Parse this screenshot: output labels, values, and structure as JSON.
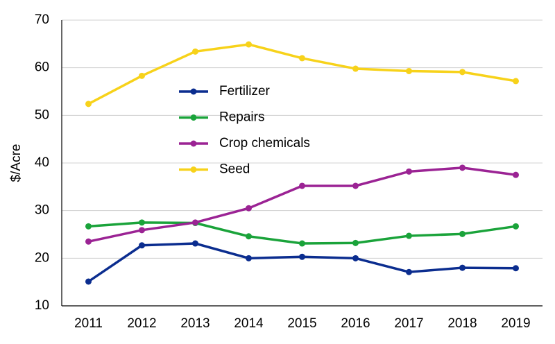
{
  "chart_data": {
    "type": "line",
    "categories": [
      "2011",
      "2012",
      "2013",
      "2014",
      "2015",
      "2016",
      "2017",
      "2018",
      "2019"
    ],
    "series": [
      {
        "name": "Fertilizer",
        "color": "#0b2d8f",
        "values": [
          15.1,
          22.7,
          23.1,
          20.0,
          20.3,
          20.0,
          17.1,
          18.0,
          17.9
        ]
      },
      {
        "name": "Repairs",
        "color": "#1aa33a",
        "values": [
          26.7,
          27.5,
          27.4,
          24.6,
          23.1,
          23.2,
          24.7,
          25.1,
          26.7
        ]
      },
      {
        "name": "Crop chemicals",
        "color": "#9b2394",
        "values": [
          23.5,
          25.9,
          27.5,
          30.5,
          35.2,
          35.2,
          38.2,
          39.0,
          37.5
        ]
      },
      {
        "name": "Seed",
        "color": "#f7d21a",
        "values": [
          52.4,
          58.3,
          63.4,
          64.9,
          62.0,
          59.8,
          59.3,
          59.1,
          57.2
        ]
      }
    ],
    "y_label": "$/Acre",
    "ylim": [
      10,
      70
    ],
    "yticks": [
      10,
      20,
      30,
      40,
      50,
      60,
      70
    ],
    "grid": true
  }
}
